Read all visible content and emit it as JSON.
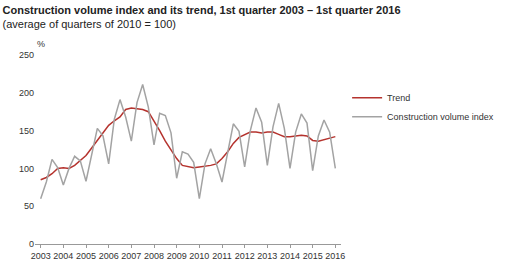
{
  "chart_data": {
    "type": "line",
    "title": "Construction volume index and its trend, 1st quarter 2003 – 1st quarter 2016",
    "subtitle": "(average of quarters of 2010 = 100)",
    "y_label": "%",
    "categories": [
      "2003",
      null,
      null,
      null,
      "2004",
      null,
      null,
      null,
      "2005",
      null,
      null,
      null,
      "2006",
      null,
      null,
      null,
      "2007",
      null,
      null,
      null,
      "2008",
      null,
      null,
      null,
      "2009",
      null,
      null,
      null,
      "2010",
      null,
      null,
      null,
      "2011",
      null,
      null,
      null,
      "2012",
      null,
      null,
      null,
      "2013",
      null,
      null,
      null,
      "2014",
      null,
      null,
      null,
      "2015",
      null,
      null,
      null,
      "2016"
    ],
    "series": [
      {
        "name": "Trend",
        "color": "#b5332e",
        "values": [
          85,
          88,
          93,
          100,
          101,
          100,
          104,
          110,
          117,
          127,
          137,
          148,
          157,
          163,
          168,
          178,
          180,
          179,
          178,
          175,
          163,
          150,
          136,
          124,
          113,
          104,
          102,
          101,
          102,
          103,
          104,
          106,
          113,
          122,
          133,
          141,
          145,
          148,
          148,
          147,
          148,
          148,
          145,
          142,
          142,
          143,
          144,
          143,
          137,
          136,
          138,
          141,
          142
        ]
      },
      {
        "name": "Construction volume index",
        "color": "#a3a3a3",
        "values": [
          60,
          82,
          112,
          101,
          78,
          100,
          116,
          110,
          83,
          120,
          153,
          143,
          106,
          165,
          191,
          168,
          136,
          187,
          211,
          181,
          131,
          173,
          170,
          147,
          87,
          122,
          119,
          108,
          60,
          106,
          126,
          106,
          82,
          121,
          159,
          149,
          102,
          150,
          180,
          161,
          104,
          155,
          186,
          153,
          100,
          148,
          172,
          160,
          97,
          143,
          164,
          148,
          100
        ]
      }
    ],
    "ylim": [
      0,
      250
    ],
    "yticks": [
      0,
      50,
      100,
      150,
      200,
      250
    ],
    "grid": false,
    "legend": "right"
  }
}
